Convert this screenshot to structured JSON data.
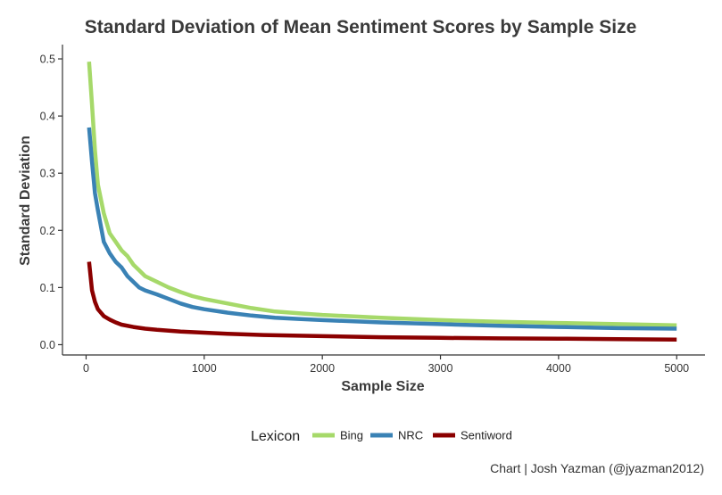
{
  "chart_data": {
    "type": "line",
    "title": "Standard Deviation of Mean Sentiment Scores by Sample Size",
    "xlabel": "Sample Size",
    "ylabel": "Standard Deviation",
    "xlim": [
      -200,
      5240
    ],
    "ylim": [
      -0.018,
      0.525
    ],
    "xticks": [
      0,
      1000,
      2000,
      3000,
      4000,
      5000
    ],
    "xtick_labels": [
      "0",
      "1000",
      "2000",
      "3000",
      "4000",
      "5000"
    ],
    "yticks": [
      0.0,
      0.1,
      0.2,
      0.3,
      0.4,
      0.5
    ],
    "ytick_labels": [
      "0.0",
      "0.1",
      "0.2",
      "0.3",
      "0.4",
      "0.5"
    ],
    "grid": false,
    "legend": {
      "title": "Lexicon",
      "position": "bottom"
    },
    "caption": "Chart | Josh Yazman (@jyazman2012)",
    "series": [
      {
        "name": "Bing",
        "color": "#a6d96a",
        "points": [
          [
            25,
            0.495
          ],
          [
            50,
            0.42
          ],
          [
            75,
            0.34
          ],
          [
            100,
            0.28
          ],
          [
            150,
            0.23
          ],
          [
            200,
            0.195
          ],
          [
            250,
            0.18
          ],
          [
            300,
            0.165
          ],
          [
            350,
            0.155
          ],
          [
            400,
            0.14
          ],
          [
            450,
            0.13
          ],
          [
            500,
            0.12
          ],
          [
            600,
            0.11
          ],
          [
            700,
            0.1
          ],
          [
            800,
            0.092
          ],
          [
            900,
            0.085
          ],
          [
            1000,
            0.08
          ],
          [
            1200,
            0.072
          ],
          [
            1400,
            0.064
          ],
          [
            1600,
            0.058
          ],
          [
            1800,
            0.055
          ],
          [
            2000,
            0.052
          ],
          [
            2500,
            0.047
          ],
          [
            3000,
            0.043
          ],
          [
            3500,
            0.04
          ],
          [
            4000,
            0.038
          ],
          [
            4500,
            0.036
          ],
          [
            5000,
            0.034
          ]
        ]
      },
      {
        "name": "NRC",
        "color": "#3a82b5",
        "points": [
          [
            25,
            0.38
          ],
          [
            50,
            0.32
          ],
          [
            75,
            0.265
          ],
          [
            100,
            0.235
          ],
          [
            150,
            0.18
          ],
          [
            200,
            0.16
          ],
          [
            250,
            0.145
          ],
          [
            300,
            0.135
          ],
          [
            350,
            0.12
          ],
          [
            400,
            0.11
          ],
          [
            450,
            0.1
          ],
          [
            500,
            0.095
          ],
          [
            600,
            0.088
          ],
          [
            700,
            0.08
          ],
          [
            800,
            0.072
          ],
          [
            900,
            0.066
          ],
          [
            1000,
            0.062
          ],
          [
            1200,
            0.056
          ],
          [
            1400,
            0.051
          ],
          [
            1600,
            0.047
          ],
          [
            1800,
            0.045
          ],
          [
            2000,
            0.043
          ],
          [
            2500,
            0.039
          ],
          [
            3000,
            0.036
          ],
          [
            3500,
            0.033
          ],
          [
            4000,
            0.031
          ],
          [
            4500,
            0.029
          ],
          [
            5000,
            0.028
          ]
        ]
      },
      {
        "name": "Sentiword",
        "color": "#8b0000",
        "points": [
          [
            25,
            0.145
          ],
          [
            50,
            0.095
          ],
          [
            75,
            0.075
          ],
          [
            100,
            0.062
          ],
          [
            150,
            0.05
          ],
          [
            200,
            0.044
          ],
          [
            250,
            0.039
          ],
          [
            300,
            0.035
          ],
          [
            400,
            0.031
          ],
          [
            500,
            0.028
          ],
          [
            600,
            0.026
          ],
          [
            800,
            0.023
          ],
          [
            1000,
            0.021
          ],
          [
            1200,
            0.019
          ],
          [
            1500,
            0.017
          ],
          [
            2000,
            0.015
          ],
          [
            2500,
            0.013
          ],
          [
            3000,
            0.012
          ],
          [
            3500,
            0.011
          ],
          [
            4000,
            0.0105
          ],
          [
            4500,
            0.0098
          ],
          [
            5000,
            0.009
          ]
        ]
      }
    ]
  }
}
